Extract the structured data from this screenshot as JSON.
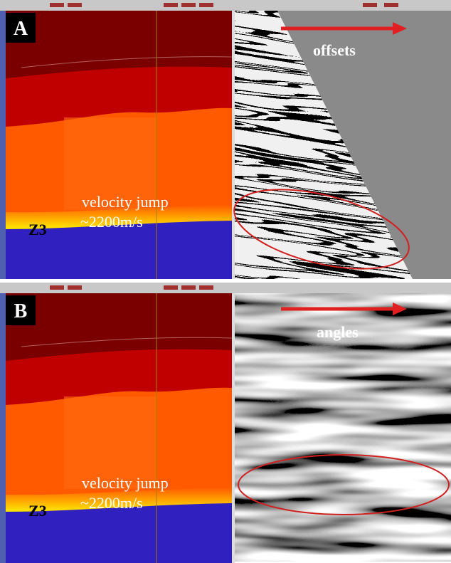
{
  "panels": [
    {
      "label": "A",
      "horizon": "Z3",
      "annotation": [
        "velocity jump",
        "~2200m/s"
      ],
      "gather_label": "offsets"
    },
    {
      "label": "B",
      "horizon": "Z3",
      "annotation": [
        "velocity jump",
        "~2200m/s"
      ],
      "gather_label": "angles"
    }
  ]
}
